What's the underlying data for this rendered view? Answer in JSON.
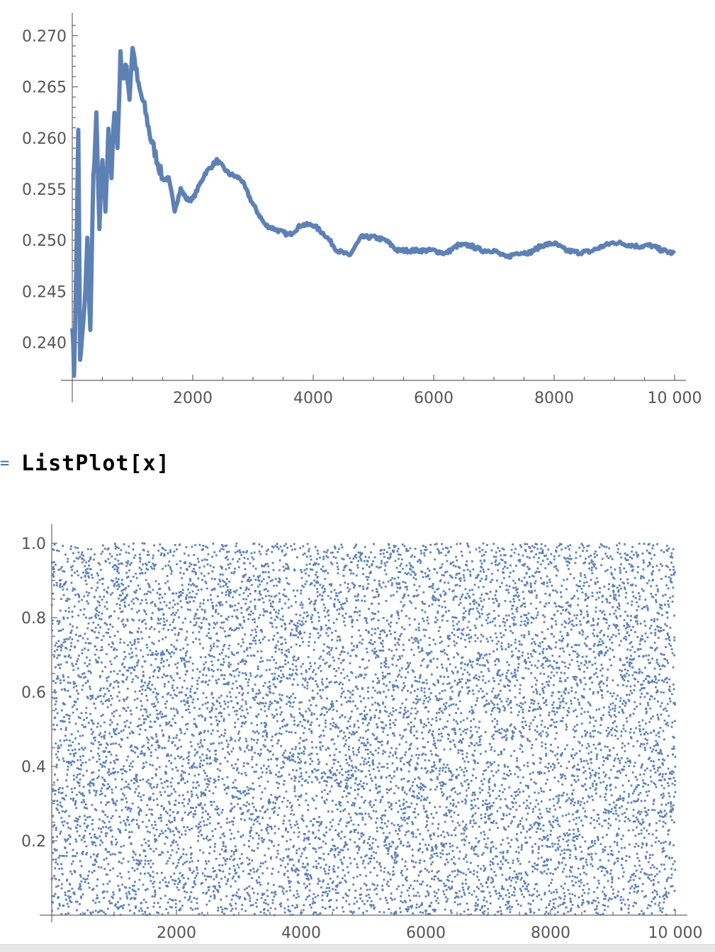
{
  "colors": {
    "series": "#5e81b5",
    "axis": "#666666",
    "tick_label": "#555555"
  },
  "input_cell": {
    "prompt": "=",
    "code": "ListPlot[x]"
  },
  "chart_data": [
    {
      "type": "line",
      "title": "",
      "xlabel": "",
      "ylabel": "",
      "xlim": [
        0,
        10000
      ],
      "ylim": [
        0.2363,
        0.2715
      ],
      "grid": false,
      "x_ticks": [
        2000,
        4000,
        6000,
        8000,
        10000
      ],
      "x_tick_labels": [
        "2000",
        "4000",
        "6000",
        "8000",
        "10 000"
      ],
      "y_ticks": [
        0.24,
        0.245,
        0.25,
        0.255,
        0.26,
        0.265,
        0.27
      ],
      "y_tick_labels": [
        "0.240",
        "0.245",
        "0.250",
        "0.255",
        "0.260",
        "0.265",
        "0.270"
      ],
      "x": [
        1,
        30,
        60,
        100,
        130,
        200,
        250,
        300,
        350,
        400,
        450,
        500,
        550,
        600,
        650,
        700,
        750,
        800,
        850,
        900,
        950,
        1000,
        1100,
        1200,
        1300,
        1400,
        1500,
        1600,
        1700,
        1800,
        1900,
        2000,
        2200,
        2400,
        2600,
        2800,
        3000,
        3200,
        3400,
        3600,
        3800,
        4000,
        4200,
        4400,
        4600,
        4800,
        5000,
        5200,
        5400,
        5600,
        5800,
        6000,
        6200,
        6400,
        6600,
        6800,
        7000,
        7200,
        7400,
        7600,
        7800,
        8000,
        8200,
        8400,
        8600,
        8800,
        9000,
        9200,
        9400,
        9600,
        9800,
        10000
      ],
      "y": [
        0.242,
        0.237,
        0.245,
        0.261,
        0.238,
        0.243,
        0.25,
        0.241,
        0.256,
        0.262,
        0.251,
        0.258,
        0.253,
        0.261,
        0.256,
        0.263,
        0.259,
        0.268,
        0.266,
        0.267,
        0.264,
        0.269,
        0.265,
        0.263,
        0.26,
        0.258,
        0.256,
        0.256,
        0.253,
        0.255,
        0.254,
        0.254,
        0.2565,
        0.2578,
        0.2565,
        0.256,
        0.2535,
        0.2515,
        0.251,
        0.2505,
        0.2515,
        0.2515,
        0.2505,
        0.249,
        0.2485,
        0.2503,
        0.2503,
        0.25,
        0.249,
        0.249,
        0.249,
        0.249,
        0.2487,
        0.2495,
        0.2495,
        0.249,
        0.249,
        0.2483,
        0.2488,
        0.2488,
        0.2495,
        0.2497,
        0.249,
        0.2488,
        0.2489,
        0.2494,
        0.2498,
        0.2496,
        0.2494,
        0.2495,
        0.249,
        0.2487
      ]
    },
    {
      "type": "scatter",
      "title": "",
      "xlabel": "",
      "ylabel": "",
      "xlim": [
        0,
        10000
      ],
      "ylim": [
        0,
        1
      ],
      "grid": false,
      "x_ticks": [
        2000,
        4000,
        6000,
        8000,
        10000
      ],
      "x_tick_labels": [
        "2000",
        "4000",
        "6000",
        "8000",
        "10 000"
      ],
      "y_ticks": [
        0.2,
        0.4,
        0.6,
        0.8,
        1.0
      ],
      "y_tick_labels": [
        "0.2",
        "0.4",
        "0.6",
        "0.8",
        "1.0"
      ],
      "point_count": 10000,
      "distribution": "uniform random on [0, 1]"
    }
  ]
}
